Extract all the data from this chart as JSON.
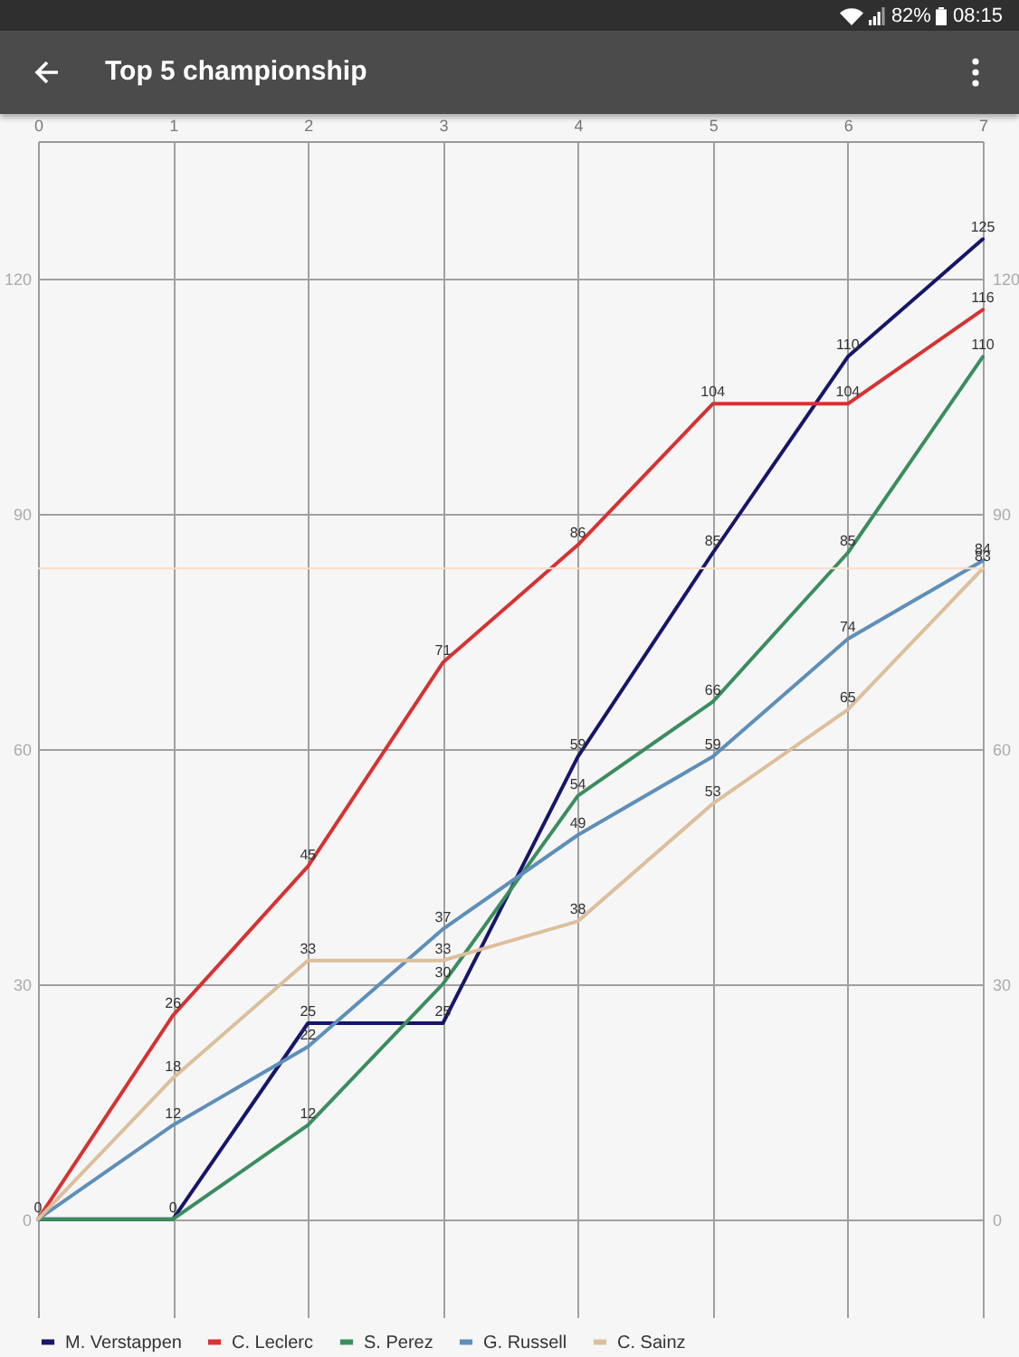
{
  "chart_data": {
    "type": "line",
    "title": "Top 5 championship",
    "annotations": [
      "82%",
      "08:15"
    ],
    "x": [
      0,
      1,
      2,
      3,
      4,
      5,
      6,
      7
    ],
    "series": [
      {
        "name": "M. Verstappen",
        "color": "#16166b",
        "values": [
          0,
          0,
          25,
          25,
          59,
          85,
          110,
          125
        ],
        "value_labels": [
          "0",
          "0",
          "25",
          "25",
          "59",
          "85",
          "110",
          "125"
        ]
      },
      {
        "name": "C. Leclerc",
        "color": "#d63232",
        "values": [
          0,
          26,
          45,
          71,
          86,
          104,
          104,
          116
        ],
        "value_labels": [
          null,
          "26",
          "45",
          "71",
          "86",
          "104",
          "104",
          "116"
        ]
      },
      {
        "name": "S. Perez",
        "color": "#3b8d5e",
        "values": [
          0,
          0,
          12,
          30,
          54,
          66,
          85,
          110
        ],
        "value_labels": [
          null,
          null,
          "12",
          "30",
          "54",
          "66",
          "85",
          "110"
        ]
      },
      {
        "name": "G. Russell",
        "color": "#5e8fb8",
        "values": [
          0,
          12,
          22,
          37,
          49,
          59,
          74,
          84
        ],
        "value_labels": [
          null,
          "12",
          "22",
          "37",
          "49",
          "59",
          "74",
          "84"
        ]
      },
      {
        "name": "C. Sainz",
        "color": "#dcbf9c",
        "values": [
          0,
          18,
          33,
          33,
          38,
          53,
          65,
          83
        ],
        "value_labels": [
          null,
          "18",
          "33",
          "33",
          "38",
          "53",
          "65",
          "83"
        ]
      }
    ],
    "xlim": [
      0,
      7
    ],
    "xticks": [
      0,
      1,
      2,
      3,
      4,
      5,
      6,
      7
    ],
    "ylim": [
      -12.5,
      137.5
    ],
    "yticks": [
      0,
      30,
      60,
      90,
      120
    ],
    "y2lim": [
      -12.5,
      137.5
    ],
    "y2ticks": [
      0,
      30,
      60,
      90,
      120
    ],
    "ref_lines": [
      {
        "axis": "y",
        "value": 83,
        "color": "#fadcc8"
      }
    ],
    "grid": true,
    "legend": "bottom",
    "line_style": "solid"
  }
}
